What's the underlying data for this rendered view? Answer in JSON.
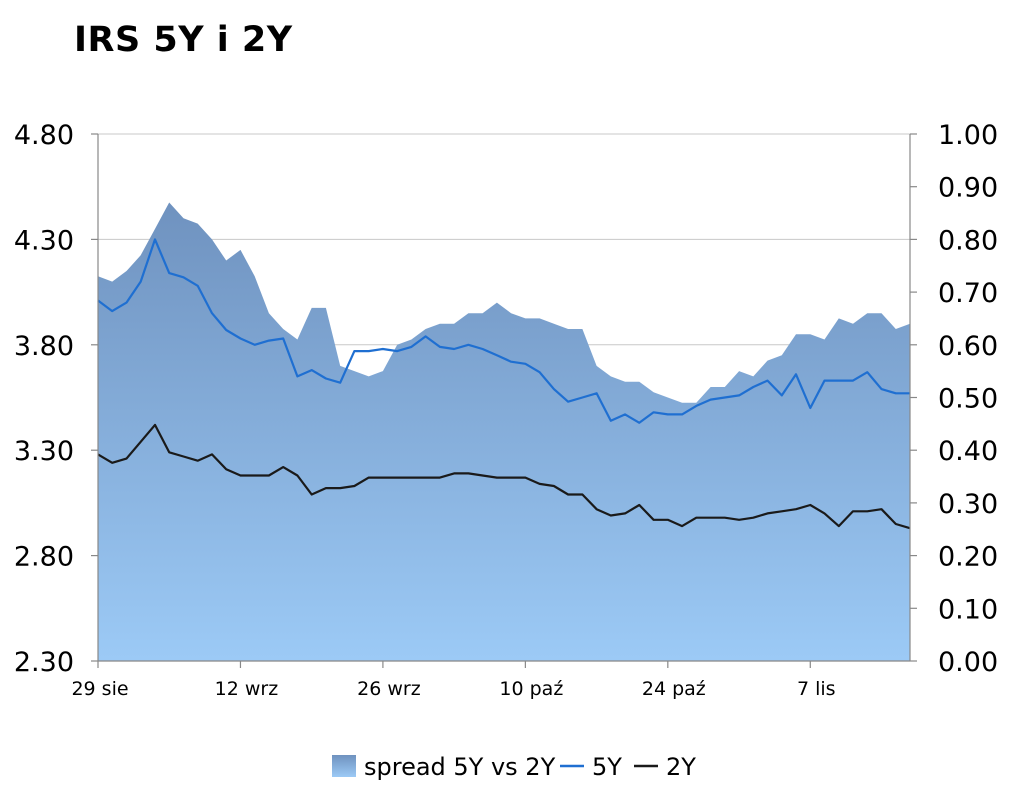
{
  "chart_data": {
    "type": "area",
    "title": "IRS 5Y i 2Y",
    "x_tick_labels": [
      "29 sie",
      "12 wrz",
      "26 wrz",
      "10 paź",
      "24 paź",
      "7 lis"
    ],
    "x_tick_index": [
      0,
      10,
      20,
      30,
      40,
      50
    ],
    "y_left": {
      "ticks": [
        "4.80",
        "4.30",
        "3.80",
        "3.30",
        "2.80",
        "2.30"
      ],
      "range": [
        2.3,
        4.8
      ]
    },
    "y_right": {
      "ticks": [
        "1.00",
        "0.90",
        "0.80",
        "0.70",
        "0.60",
        "0.50",
        "0.40",
        "0.30",
        "0.20",
        "0.10",
        "0.00"
      ],
      "range": [
        0.0,
        1.0
      ]
    },
    "grid": "horizontal",
    "legend_position": "bottom",
    "series": [
      {
        "name": "spread 5Y vs 2Y",
        "kind": "area",
        "axis": "right",
        "color": "#6f96c6",
        "values": [
          0.73,
          0.72,
          0.74,
          0.77,
          0.82,
          0.87,
          0.84,
          0.83,
          0.8,
          0.76,
          0.78,
          0.73,
          0.66,
          0.63,
          0.61,
          0.67,
          0.67,
          0.56,
          0.55,
          0.54,
          0.55,
          0.6,
          0.61,
          0.63,
          0.64,
          0.64,
          0.66,
          0.66,
          0.68,
          0.66,
          0.65,
          0.65,
          0.64,
          0.63,
          0.63,
          0.56,
          0.54,
          0.53,
          0.53,
          0.51,
          0.5,
          0.49,
          0.49,
          0.52,
          0.52,
          0.55,
          0.54,
          0.57,
          0.58,
          0.62,
          0.62,
          0.61,
          0.65,
          0.64,
          0.66,
          0.66,
          0.63,
          0.64
        ]
      },
      {
        "name": "5Y",
        "kind": "line",
        "axis": "left",
        "color": "#1f6fd1",
        "values": [
          4.01,
          3.96,
          4.0,
          4.1,
          4.3,
          4.14,
          4.12,
          4.08,
          3.95,
          3.87,
          3.83,
          3.8,
          3.82,
          3.83,
          3.65,
          3.68,
          3.64,
          3.62,
          3.77,
          3.77,
          3.78,
          3.77,
          3.79,
          3.84,
          3.79,
          3.78,
          3.8,
          3.78,
          3.75,
          3.72,
          3.71,
          3.67,
          3.59,
          3.53,
          3.55,
          3.57,
          3.44,
          3.47,
          3.43,
          3.48,
          3.47,
          3.47,
          3.51,
          3.54,
          3.55,
          3.56,
          3.6,
          3.63,
          3.56,
          3.66,
          3.5,
          3.63,
          3.63,
          3.63,
          3.67,
          3.59,
          3.57,
          3.57
        ]
      },
      {
        "name": "2Y",
        "kind": "line",
        "axis": "left",
        "color": "#1a1a1a",
        "values": [
          3.28,
          3.24,
          3.26,
          3.34,
          3.42,
          3.29,
          3.27,
          3.25,
          3.28,
          3.21,
          3.18,
          3.18,
          3.18,
          3.22,
          3.18,
          3.09,
          3.12,
          3.12,
          3.13,
          3.17,
          3.17,
          3.17,
          3.17,
          3.17,
          3.17,
          3.19,
          3.19,
          3.18,
          3.17,
          3.17,
          3.17,
          3.14,
          3.13,
          3.09,
          3.09,
          3.02,
          2.99,
          3.0,
          3.04,
          2.97,
          2.97,
          2.94,
          2.98,
          2.98,
          2.98,
          2.97,
          2.98,
          3.0,
          3.01,
          3.02,
          3.04,
          3.0,
          2.94,
          3.01,
          3.01,
          3.02,
          2.95,
          2.93
        ]
      }
    ]
  }
}
